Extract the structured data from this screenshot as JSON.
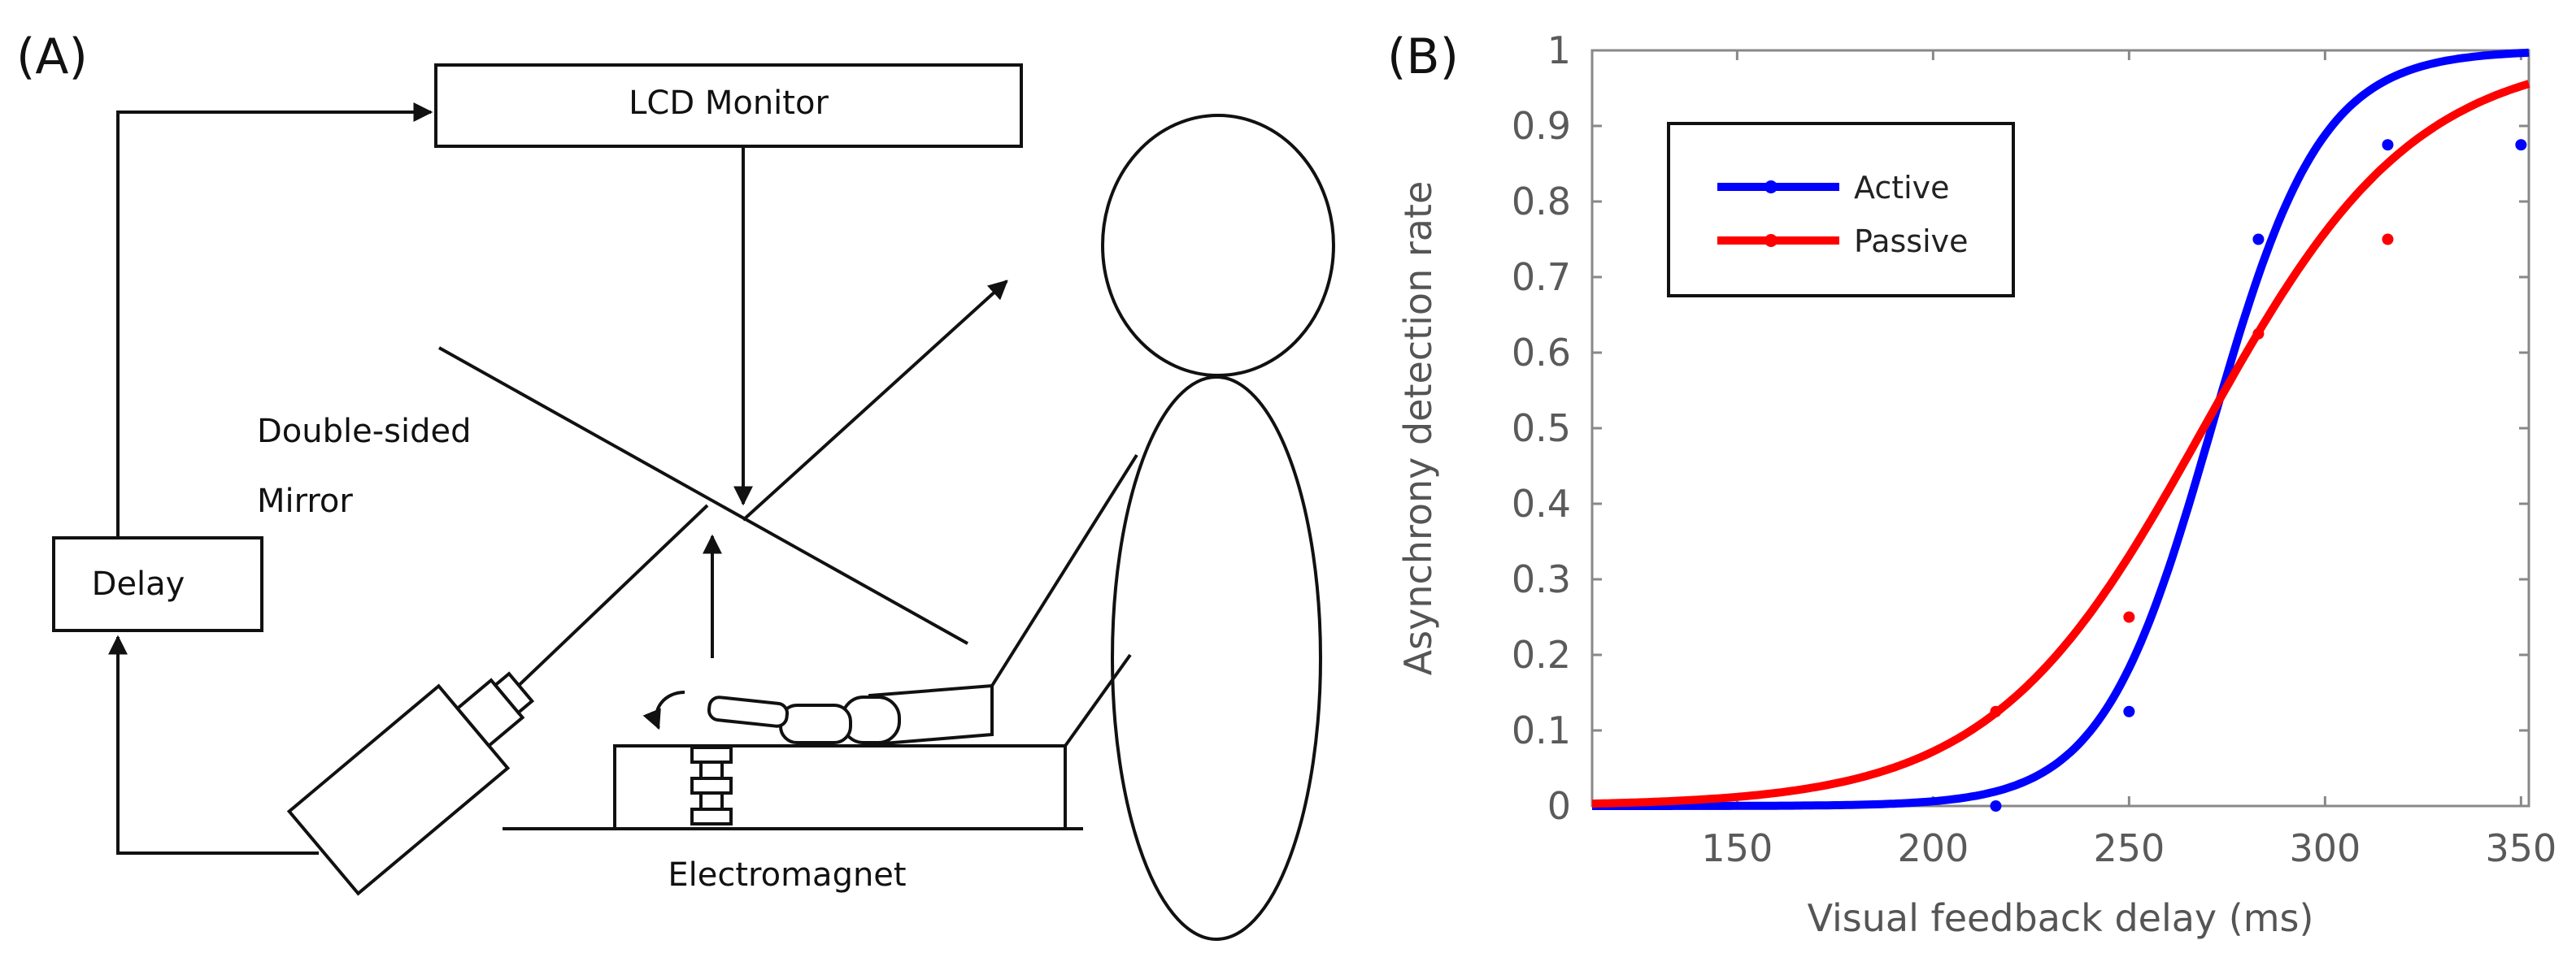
{
  "panel_a": {
    "label": "(A)",
    "lcd_monitor": "LCD Monitor",
    "mirror_line1": "Double-sided",
    "mirror_line2": "Mirror",
    "delay": "Delay",
    "electromagnet": "Electromagnet"
  },
  "panel_b": {
    "label": "(B)"
  },
  "chart_data": {
    "type": "line",
    "title": "",
    "xlabel": "Visual feedback delay (ms)",
    "ylabel": "Asynchrony detection rate",
    "xlim": [
      113,
      352
    ],
    "ylim": [
      0,
      1
    ],
    "xticks": [
      150,
      200,
      250,
      300,
      350
    ],
    "yticks": [
      0,
      0.1,
      0.2,
      0.3,
      0.4,
      0.5,
      0.6,
      0.7,
      0.8,
      0.9,
      1
    ],
    "grid": false,
    "legend_position": "top-left",
    "series": [
      {
        "name": "Active",
        "color": "#0000ff",
        "points": [
          [
            216,
            0
          ],
          [
            250,
            0.125
          ],
          [
            283,
            0.75
          ],
          [
            316,
            0.875
          ],
          [
            350,
            0.875
          ]
        ],
        "fit": {
          "mu": 271,
          "sigma": 14
        }
      },
      {
        "name": "Passive",
        "color": "#ff0000",
        "points": [
          [
            216,
            0.125
          ],
          [
            250,
            0.25
          ],
          [
            283,
            0.625
          ],
          [
            316,
            0.75
          ]
        ],
        "fit": {
          "mu": 269,
          "sigma": 27
        }
      }
    ]
  }
}
